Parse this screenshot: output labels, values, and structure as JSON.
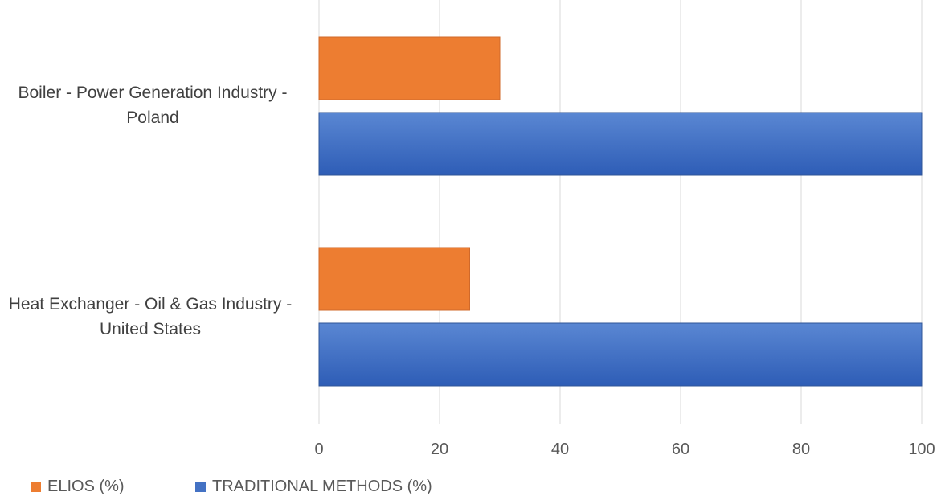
{
  "colors": {
    "elios": "#ED7D31",
    "traditional": "#4472C4",
    "grid": "#D9D9D9",
    "tick_text": "#595959"
  },
  "chart_data": {
    "type": "bar",
    "orientation": "horizontal",
    "title": "",
    "xlabel": "",
    "ylabel": "",
    "xlim": [
      0,
      100
    ],
    "x_ticks": [
      "0",
      "20",
      "40",
      "60",
      "80",
      "100"
    ],
    "grid": true,
    "legend_position": "bottom-left",
    "categories": [
      {
        "line1": "Boiler - Power Generation Industry -",
        "line2": "Poland"
      },
      {
        "line1": "Heat Exchanger - Oil & Gas Industry -",
        "line2": "United States"
      }
    ],
    "series": [
      {
        "name": "ELIOS (%)",
        "values": [
          30,
          25
        ]
      },
      {
        "name": "TRADITIONAL METHODS (%)",
        "values": [
          100,
          100
        ]
      }
    ]
  }
}
